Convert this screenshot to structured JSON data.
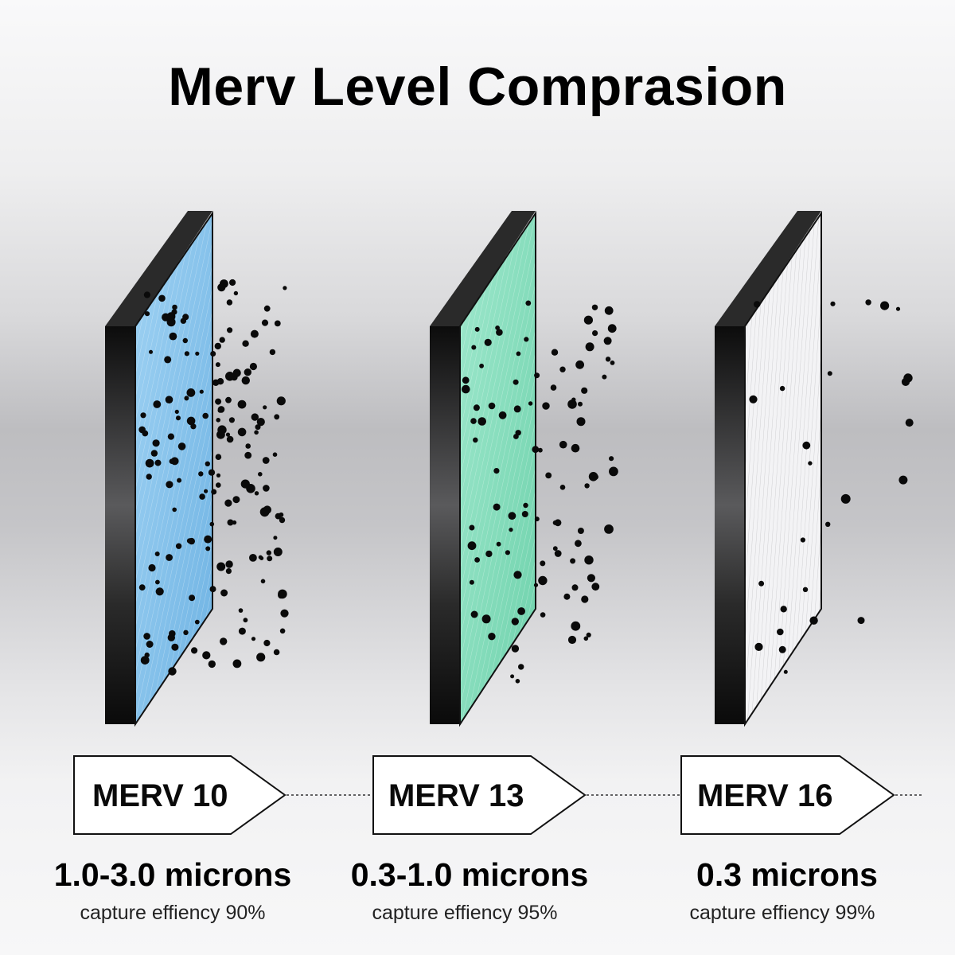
{
  "title": "Merv Level Comprasion",
  "filters": [
    {
      "rating": "MERV 10",
      "microns": "1.0-3.0 microns",
      "efficiency": "capture effiency 90%",
      "media_color": "#8cc5ec"
    },
    {
      "rating": "MERV 13",
      "microns": "0.3-1.0 microns",
      "efficiency": "capture effiency 95%",
      "media_color": "#8fe0c4"
    },
    {
      "rating": "MERV 16",
      "microns": "0.3 microns",
      "efficiency": "capture effiency 99%",
      "media_color": "#f2f2f4"
    }
  ]
}
